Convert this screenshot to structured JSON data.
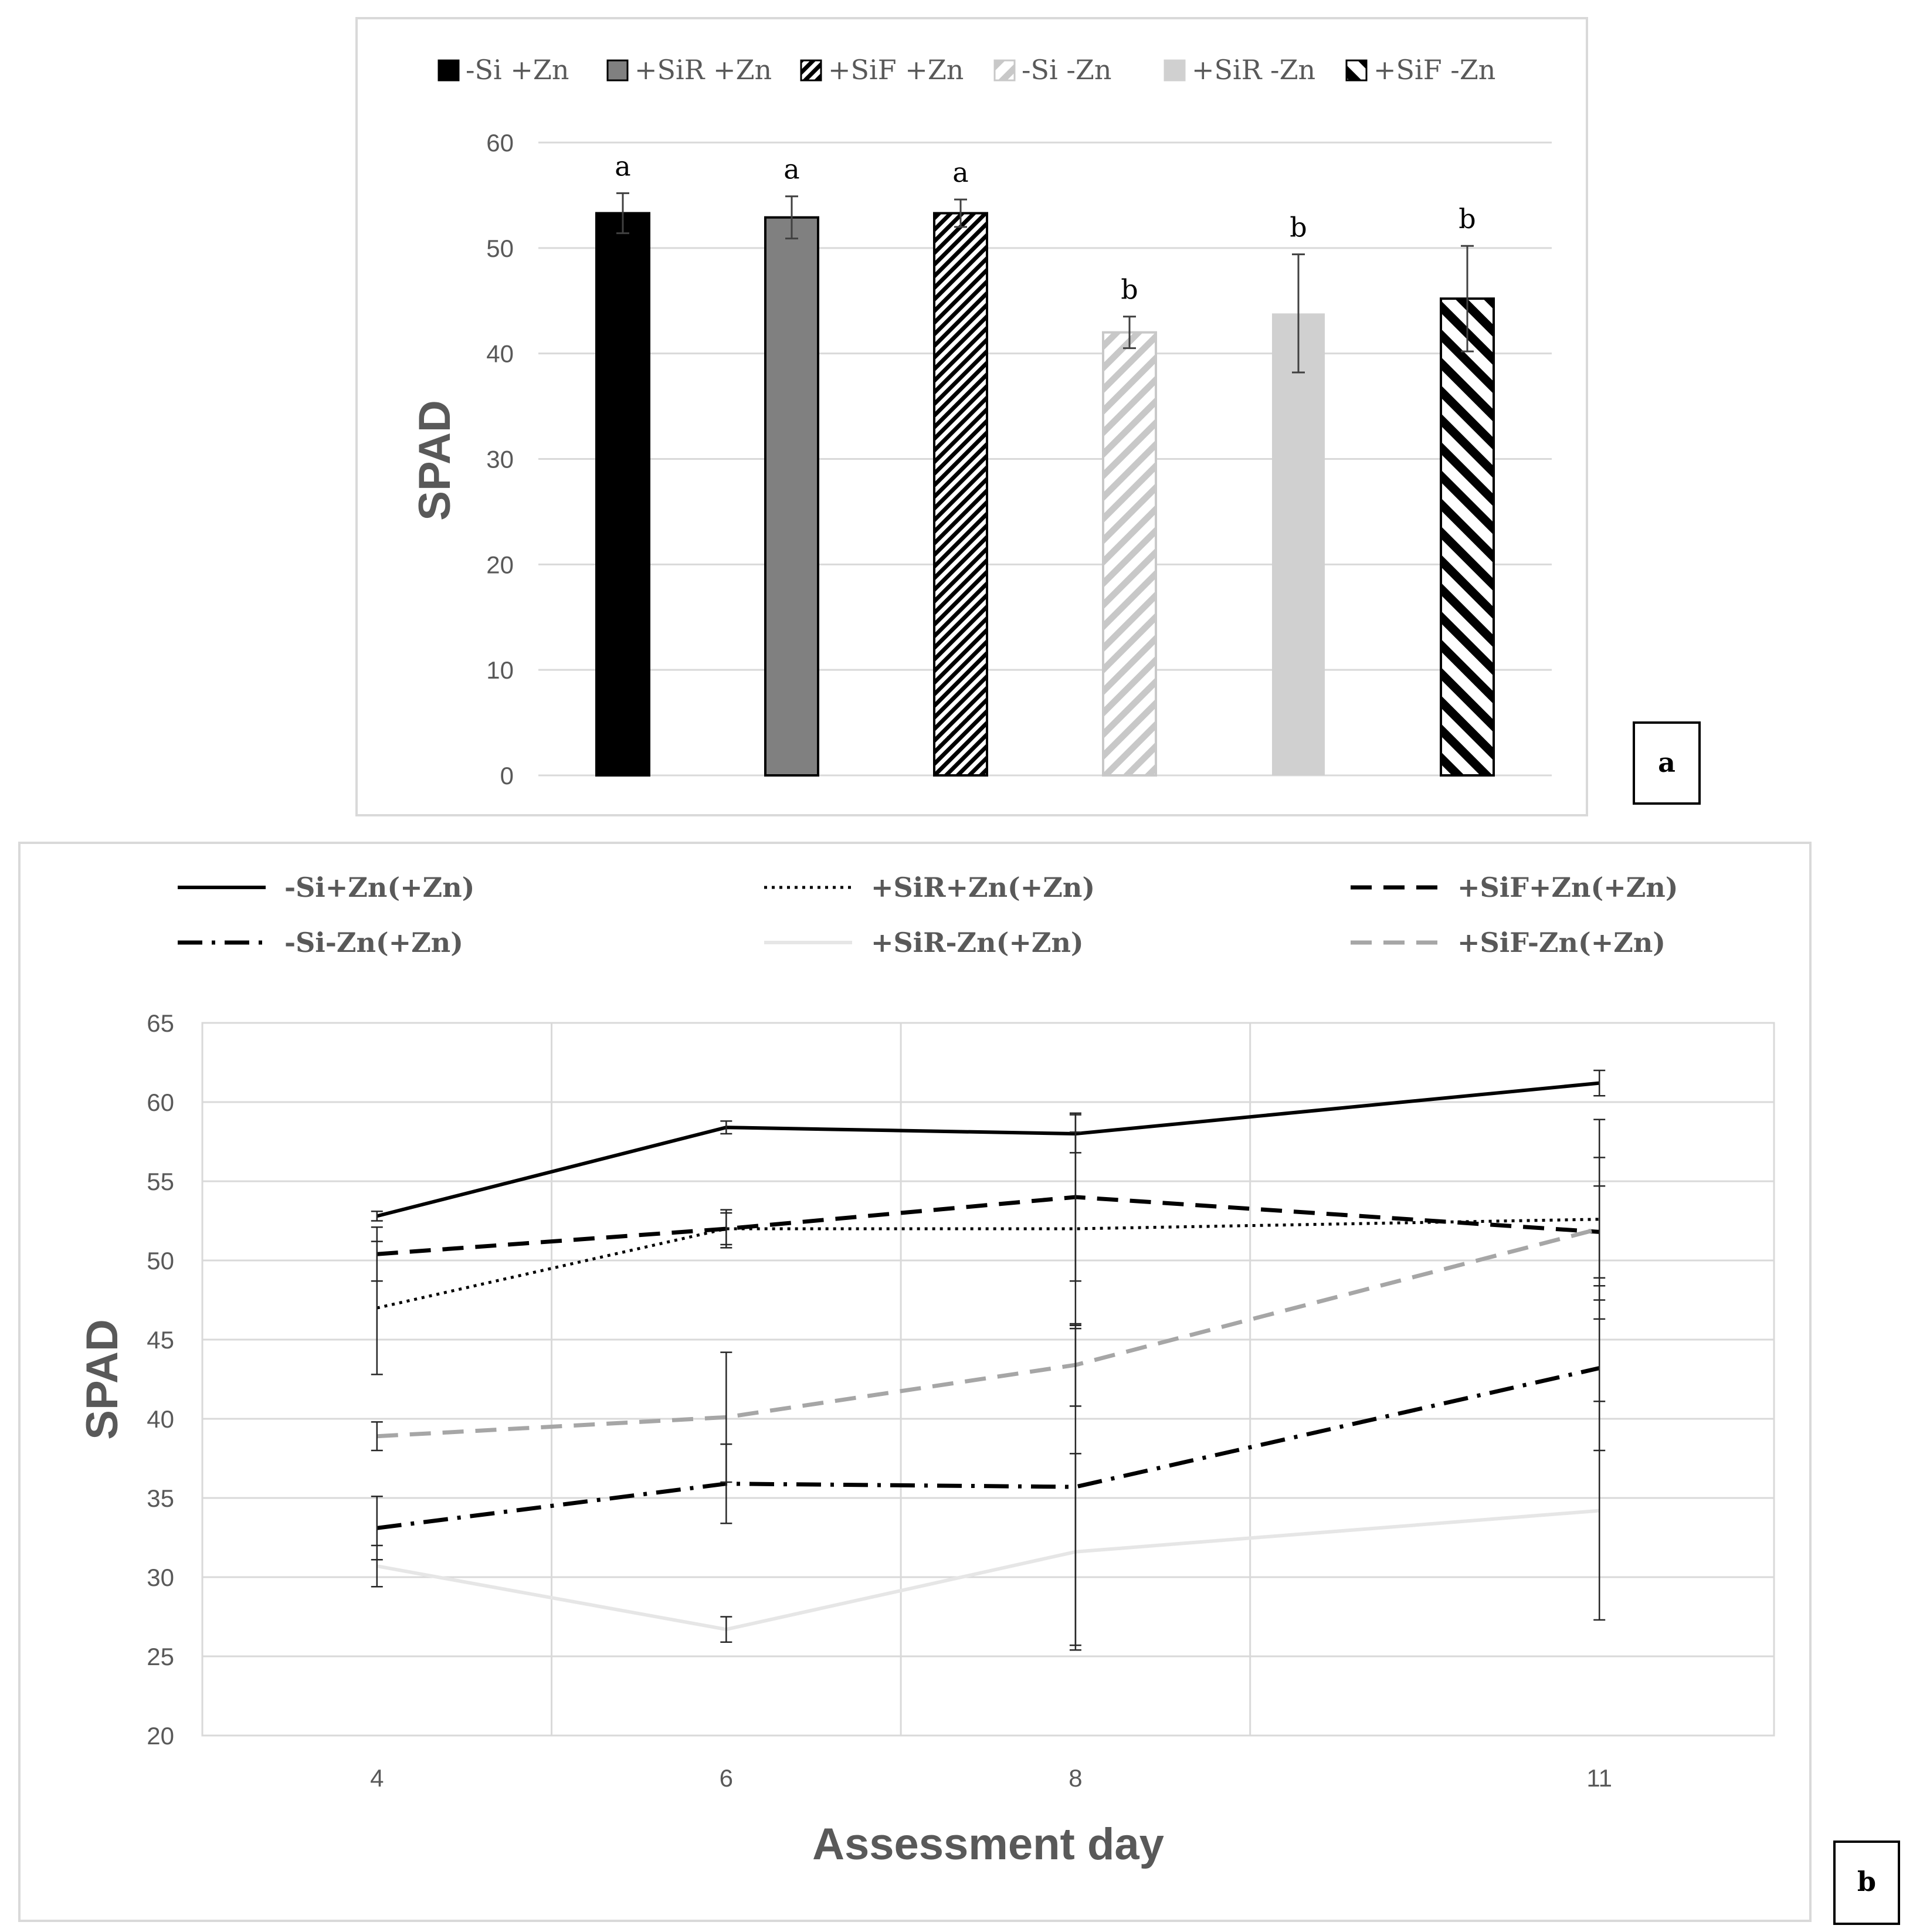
{
  "colors": {
    "text": "#595959",
    "grid": "#d9d9d9",
    "frame": "#d9d9d9",
    "black": "#000000"
  },
  "chart_data": [
    {
      "type": "bar",
      "panel_label": "a",
      "ylabel": "SPAD",
      "xlabel": "",
      "ylim": [
        0,
        60
      ],
      "yticks": [
        0,
        10,
        20,
        30,
        40,
        50,
        60
      ],
      "grid": true,
      "legend_position": "top",
      "categories": [
        "-Si +Zn",
        "+SiR +Zn",
        "+SiF +Zn",
        "-Si -Zn",
        "+SiR -Zn",
        "+SiF -Zn"
      ],
      "values": [
        53.3,
        52.9,
        53.3,
        42.0,
        43.8,
        45.2
      ],
      "errors": [
        1.9,
        2.0,
        1.3,
        1.5,
        5.6,
        5.0
      ],
      "significance_letters": [
        "a",
        "a",
        "a",
        "b",
        "b",
        "b"
      ],
      "series_styles": [
        {
          "fill": "#000000",
          "pattern": "solid"
        },
        {
          "fill": "#808080",
          "pattern": "solid"
        },
        {
          "fill": "#000000",
          "pattern": "dense-diagonal"
        },
        {
          "fill": "#c8c8c8",
          "pattern": "light-diagonal"
        },
        {
          "fill": "#d0d0d0",
          "pattern": "solid-no-border"
        },
        {
          "fill": "#000000",
          "pattern": "wide-back-diagonal"
        }
      ]
    },
    {
      "type": "line",
      "panel_label": "b",
      "xlabel": "Assessment day",
      "ylabel": "SPAD",
      "ylim": [
        20,
        65
      ],
      "yticks": [
        20,
        25,
        30,
        35,
        40,
        45,
        50,
        55,
        60,
        65
      ],
      "xlim": [
        3,
        12
      ],
      "xticks": [
        4,
        6,
        8,
        11
      ],
      "x_gridlines": [
        5,
        7,
        9
      ],
      "grid": true,
      "legend_position": "top",
      "x": [
        4,
        6,
        8,
        11
      ],
      "series": [
        {
          "name": "-Si+Zn(+Zn)",
          "values": [
            52.8,
            58.4,
            58.0,
            61.2
          ],
          "errors": [
            0.3,
            0.4,
            1.2,
            0.8
          ],
          "color": "#000000",
          "dash": "solid"
        },
        {
          "name": "+SiR+Zn(+Zn)",
          "values": [
            47.0,
            52.0,
            52.0,
            52.6
          ],
          "errors": [
            4.2,
            1.2,
            6.1,
            6.3
          ],
          "color": "#000000",
          "dash": "dotted"
        },
        {
          "name": "+SiF+Zn(+Zn)",
          "values": [
            50.4,
            52.0,
            54.0,
            51.8
          ],
          "errors": [
            1.7,
            1.0,
            5.3,
            2.9
          ],
          "color": "#000000",
          "dash": "dashed"
        },
        {
          "name": "-Si-Zn(+Zn)",
          "values": [
            33.1,
            35.9,
            35.7,
            43.2
          ],
          "errors": [
            2.0,
            2.5,
            10.0,
            5.2
          ],
          "color": "#000000",
          "dash": "dashdot"
        },
        {
          "name": "+SiR-Zn(+Zn)",
          "values": [
            30.7,
            26.7,
            31.6,
            34.2
          ],
          "errors": [
            1.3,
            0.8,
            6.2,
            6.9
          ],
          "color": "#e6e6e6",
          "dash": "solid"
        },
        {
          "name": "+SiF-Zn(+Zn)",
          "values": [
            38.9,
            40.1,
            43.4,
            52.0
          ],
          "errors": [
            0.9,
            4.1,
            2.6,
            4.5
          ],
          "color": "#a6a6a6",
          "dash": "dashed"
        }
      ]
    }
  ]
}
